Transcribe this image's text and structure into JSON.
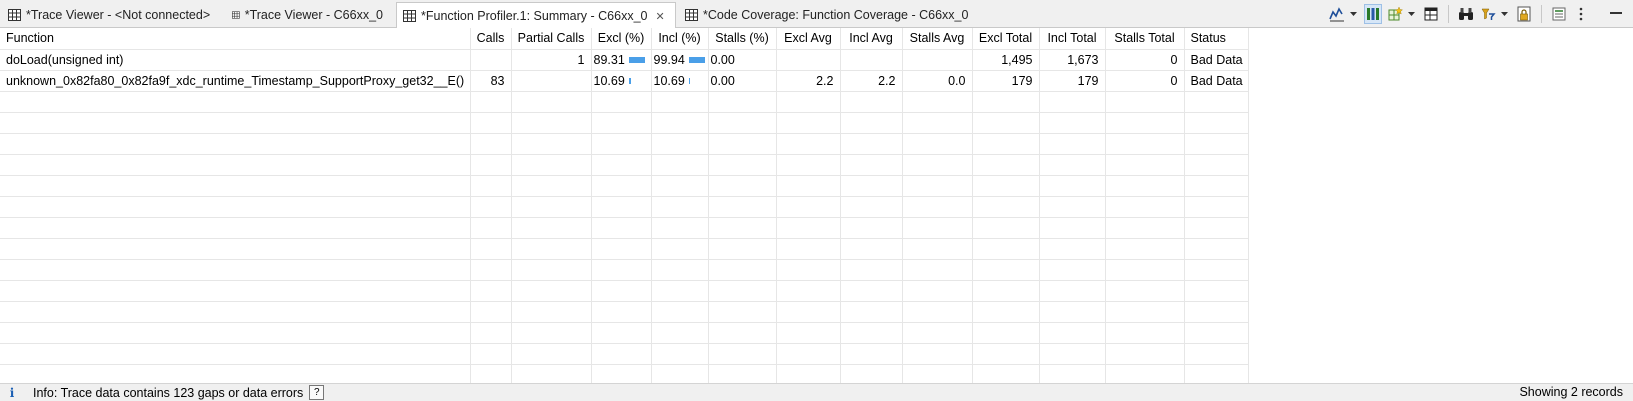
{
  "tabs": [
    {
      "label": "*Trace Viewer - <Not connected>",
      "active": false
    },
    {
      "label": "*Trace Viewer - C66xx_0",
      "active": false
    },
    {
      "label": "*Function Profiler.1: Summary - C66xx_0",
      "active": true
    },
    {
      "label": "*Code Coverage: Function Coverage - C66xx_0",
      "active": false
    }
  ],
  "toolbar_icons": [
    "chart-view-icon",
    "column-layout-icon",
    "grid-add-icon",
    "table-icon",
    "binoculars-icon",
    "filter-icon",
    "lock-icon",
    "minimize-view-icon",
    "view-menu-icon",
    "minimize-icon"
  ],
  "columns": [
    "Function",
    "Calls",
    "Partial Calls",
    "Excl (%)",
    "Incl (%)",
    "Stalls (%)",
    "Excl Avg",
    "Incl Avg",
    "Stalls Avg",
    "Excl Total",
    "Incl Total",
    "Stalls Total",
    "Status"
  ],
  "rows": [
    {
      "function": "doLoad(unsigned int)",
      "calls": "",
      "partial_calls": "1",
      "excl_pct": "89.31",
      "excl_fill": 0.8931,
      "incl_pct": "99.94",
      "incl_fill": 0.9994,
      "stalls_pct": "0.00",
      "excl_avg": "",
      "incl_avg": "",
      "stalls_avg": "",
      "excl_total": "1,495",
      "incl_total": "1,673",
      "stalls_total": "0",
      "status": "Bad Data"
    },
    {
      "function": "unknown_0x82fa80_0x82fa9f_xdc_runtime_Timestamp_SupportProxy_get32__E()",
      "calls": "83",
      "partial_calls": "",
      "excl_pct": "10.69",
      "excl_fill": 0.1069,
      "incl_pct": "10.69",
      "incl_fill": 0.1069,
      "stalls_pct": "0.00",
      "excl_avg": "2.2",
      "incl_avg": "2.2",
      "stalls_avg": "0.0",
      "excl_total": "179",
      "incl_total": "179",
      "stalls_total": "0",
      "status": "Bad Data"
    }
  ],
  "status": {
    "message": "Info: Trace data contains 123 gaps or data errors",
    "help": "?",
    "records": "Showing 2 records"
  },
  "colors": {
    "bar": "#4a9fe8",
    "info": "#1a5fb4",
    "selected_tool": "#d6e6f7"
  }
}
